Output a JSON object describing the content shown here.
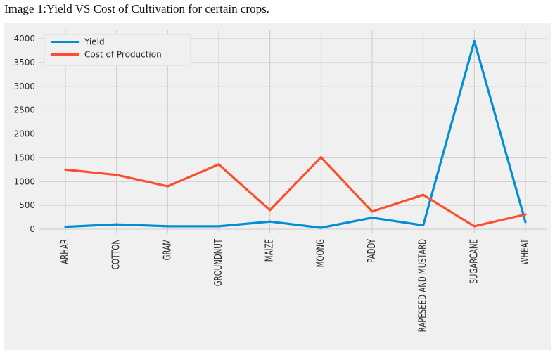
{
  "caption": "Image 1:Yield VS Cost of Cultivation for certain crops.",
  "colors": {
    "background": "#f0f0f0",
    "grid": "#cbcbcb",
    "yield": "#008fd5",
    "cost": "#fc4f30"
  },
  "chart_data": {
    "type": "line",
    "title": "",
    "xlabel": "",
    "ylabel": "",
    "categories": [
      "ARHAR",
      "COTTON",
      "GRAM",
      "GROUNDNUT",
      "MAIZE",
      "MOONG",
      "PADDY",
      "RAPESEED AND MUSTARD",
      "SUGARCANE",
      "WHEAT"
    ],
    "yticks": [
      0,
      500,
      1000,
      1500,
      2000,
      2500,
      3000,
      3500,
      4000
    ],
    "ylim": [
      -100,
      4150
    ],
    "grid": true,
    "legend_position": "top-left",
    "series": [
      {
        "name": "Yield",
        "color": "#008fd5",
        "values": [
          50,
          100,
          60,
          60,
          160,
          30,
          240,
          80,
          3950,
          150
        ]
      },
      {
        "name": "Cost of Production",
        "color": "#fc4f30",
        "values": [
          1250,
          1140,
          900,
          1360,
          400,
          1510,
          370,
          720,
          60,
          310
        ]
      }
    ]
  }
}
